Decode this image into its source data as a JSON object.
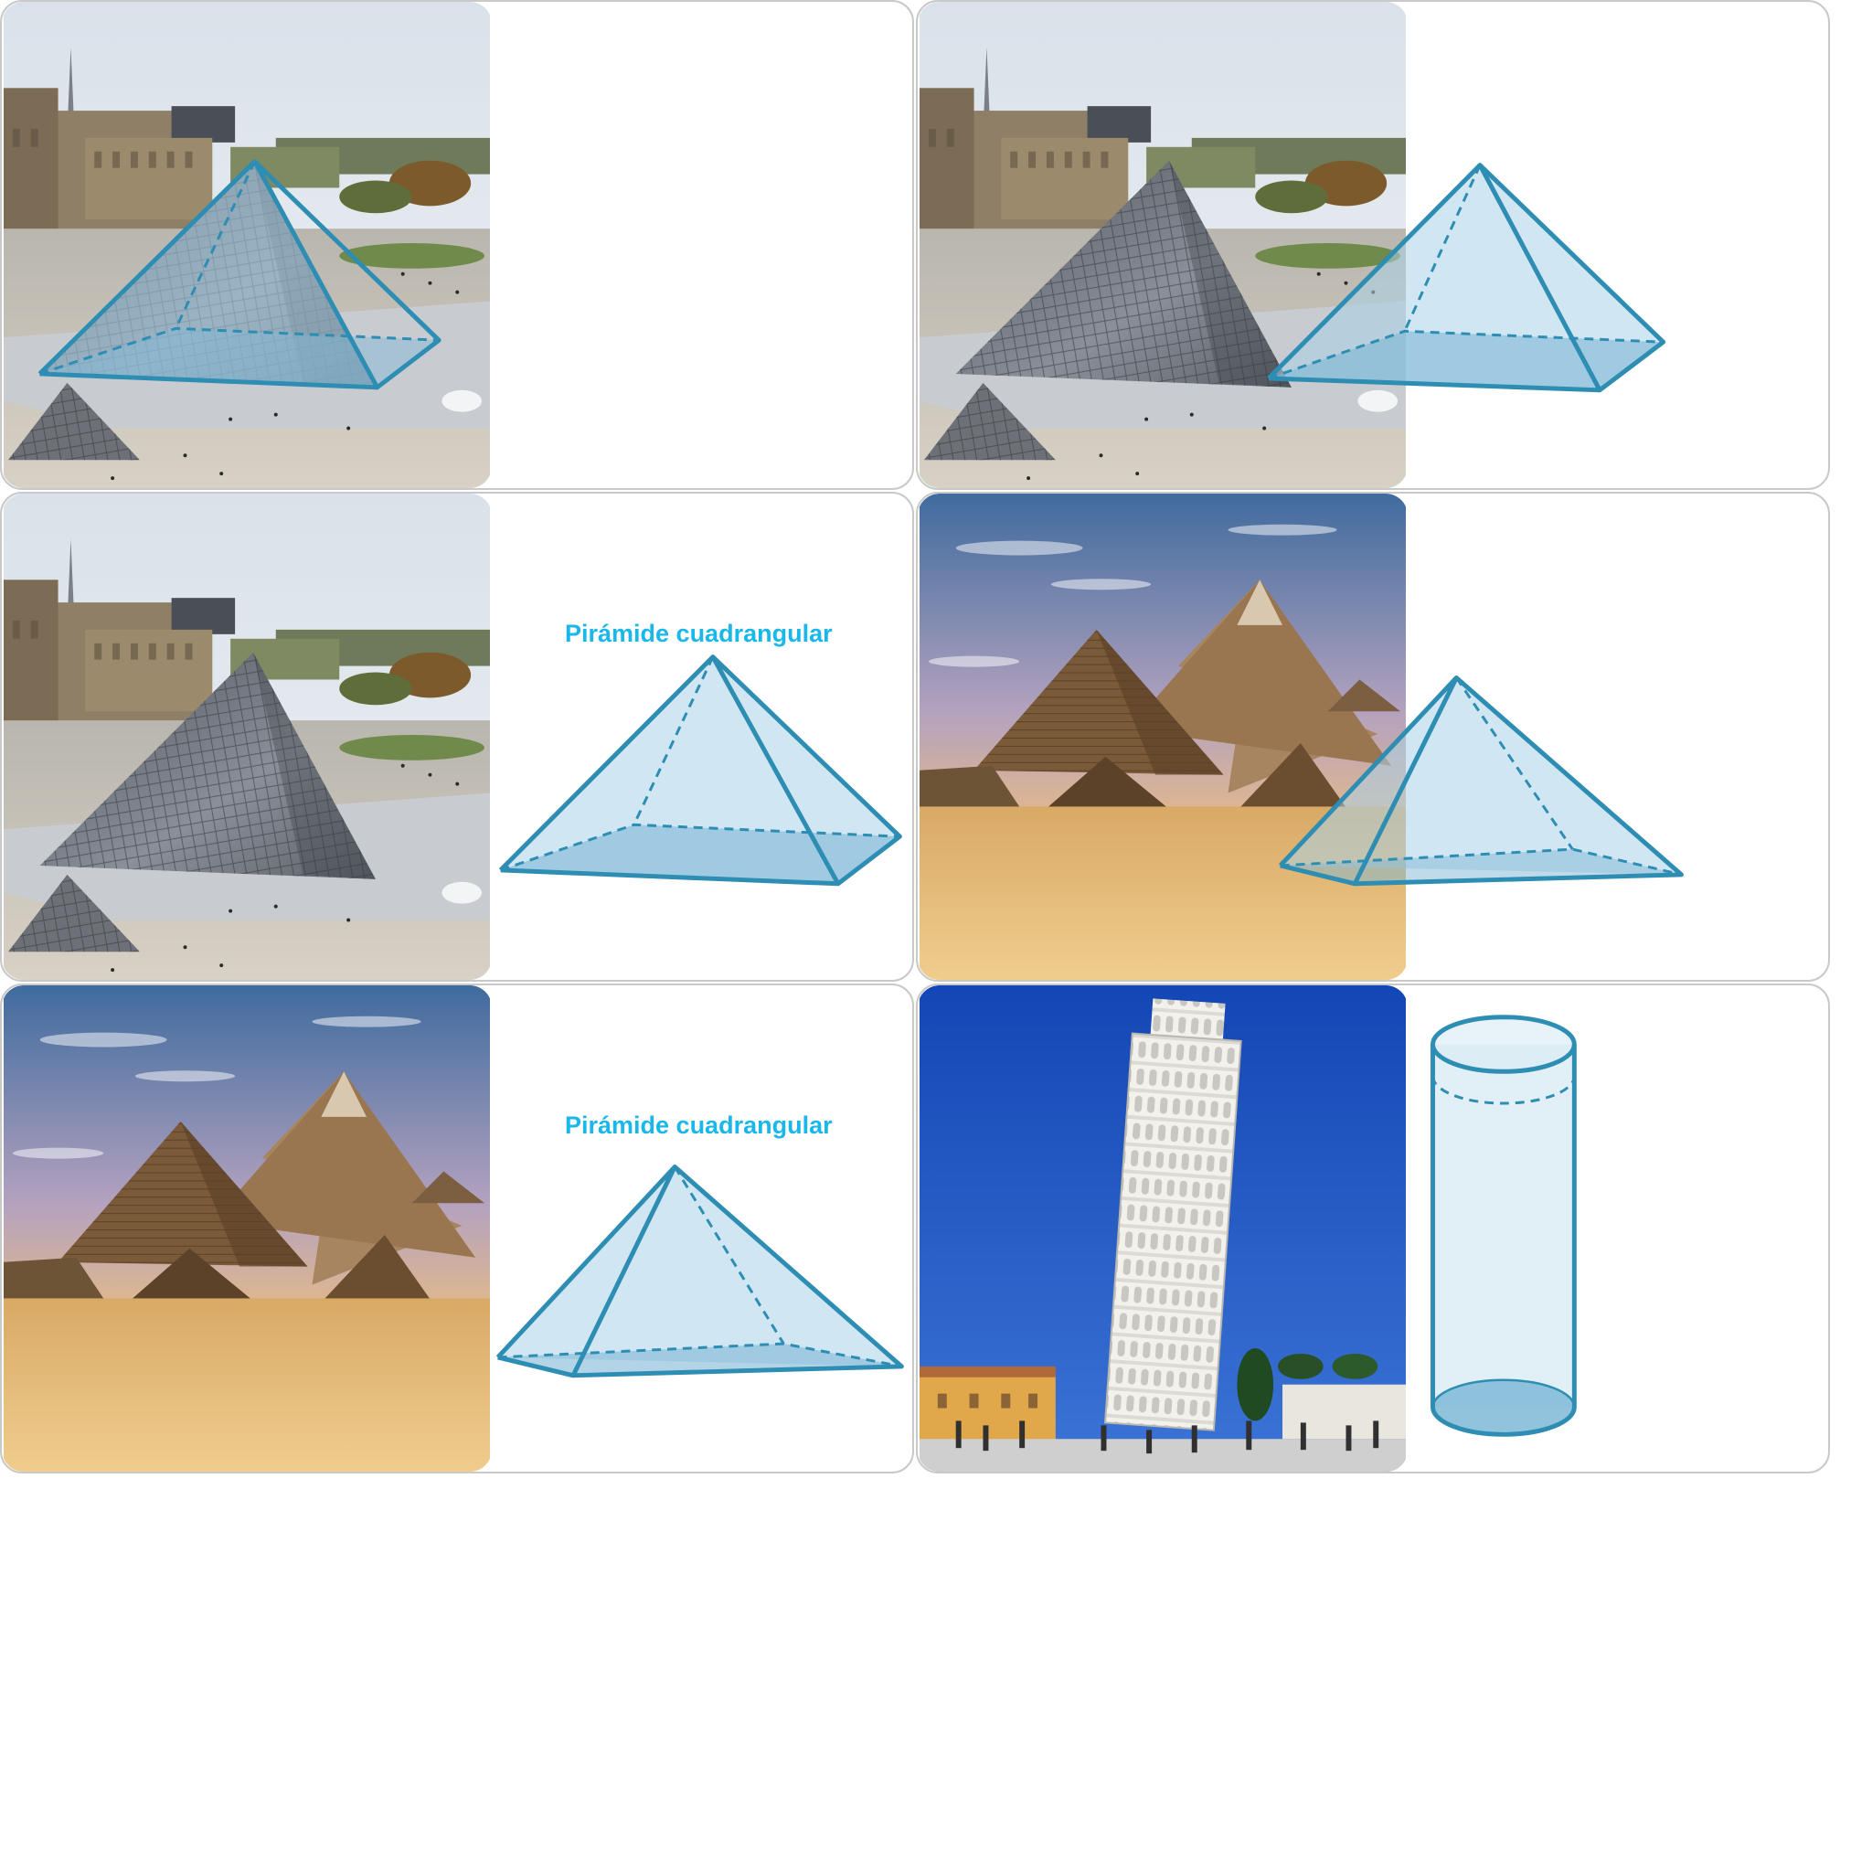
{
  "colors": {
    "outline": "#2e8db3",
    "fill": "#a9d2e8",
    "label": "#1ab7ea",
    "card_border": "#c9c9c9"
  },
  "cards": [
    {
      "photo": "louvre-pyramid",
      "shape": "square-pyramid",
      "label": ""
    },
    {
      "photo": "louvre-pyramid",
      "shape": "square-pyramid",
      "label": ""
    },
    {
      "photo": "louvre-pyramid",
      "shape": "square-pyramid",
      "label": "Pirámide cuadrangular"
    },
    {
      "photo": "giza-pyramids",
      "shape": "square-pyramid",
      "label": ""
    },
    {
      "photo": "giza-pyramids",
      "shape": "square-pyramid",
      "label": "Pirámide cuadrangular"
    },
    {
      "photo": "leaning-tower-pisa",
      "shape": "cylinder",
      "label": ""
    }
  ]
}
